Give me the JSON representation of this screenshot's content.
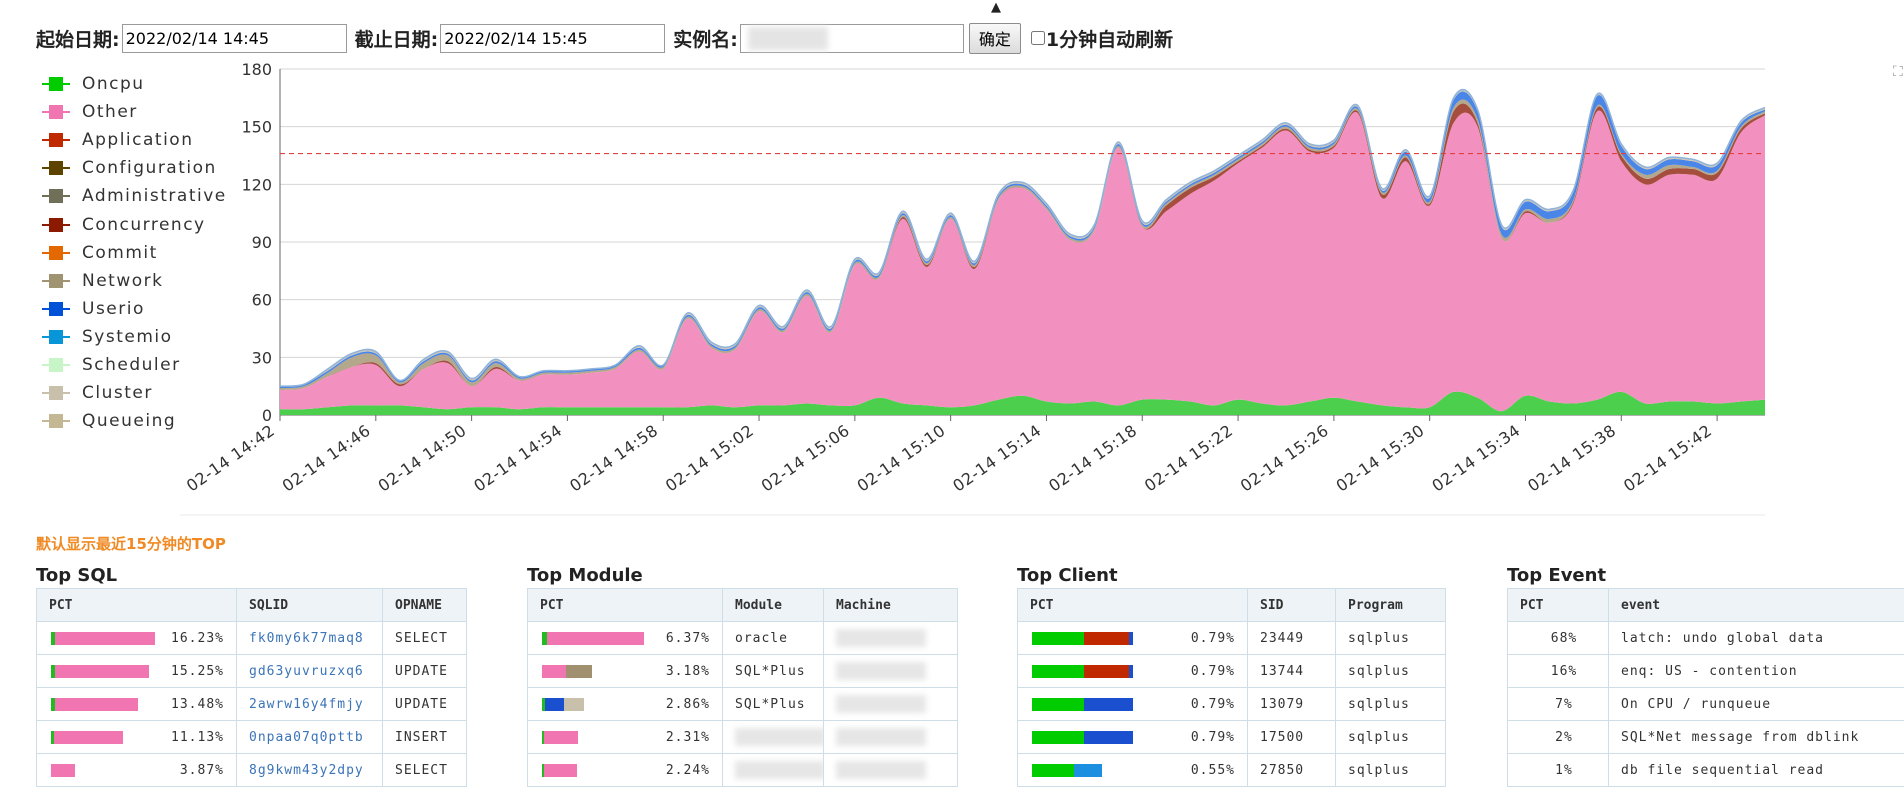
{
  "toolbar": {
    "start_label": "起始日期:",
    "start_value": "2022/02/14 14:45",
    "end_label": "截止日期:",
    "end_value": "2022/02/14 15:45",
    "instance_label": "实例名:",
    "instance_value": "",
    "confirm_label": "确定",
    "auto_refresh_label": "1分钟自动刷新",
    "auto_refresh_checked": false
  },
  "icons": {
    "caret": "▲",
    "corner": "⛶"
  },
  "legend": [
    {
      "label": "Oncpu",
      "color": "#00cc00"
    },
    {
      "label": "Other",
      "color": "#f075b0"
    },
    {
      "label": "Application",
      "color": "#c02800"
    },
    {
      "label": "Configuration",
      "color": "#5c4400"
    },
    {
      "label": "Administrative",
      "color": "#707058"
    },
    {
      "label": "Concurrency",
      "color": "#8b1a00"
    },
    {
      "label": "Commit",
      "color": "#e46800"
    },
    {
      "label": "Network",
      "color": "#9f9371"
    },
    {
      "label": "Userio",
      "color": "#0050d8"
    },
    {
      "label": "Systemio",
      "color": "#0896d8"
    },
    {
      "label": "Scheduler",
      "color": "#c8f5c8"
    },
    {
      "label": "Cluster",
      "color": "#c8c0aa"
    },
    {
      "label": "Queueing",
      "color": "#c4b894"
    }
  ],
  "chart_data": {
    "type": "area",
    "stacked": true,
    "ylim": [
      0,
      180
    ],
    "yticks": [
      0,
      30,
      60,
      90,
      120,
      150,
      180
    ],
    "threshold": 136,
    "grid": true,
    "legend_position": "left",
    "xtick_labels": [
      "02-14 14:42",
      "02-14 14:46",
      "02-14 14:50",
      "02-14 14:54",
      "02-14 14:58",
      "02-14 15:02",
      "02-14 15:06",
      "02-14 15:10",
      "02-14 15:14",
      "02-14 15:18",
      "02-14 15:22",
      "02-14 15:26",
      "02-14 15:30",
      "02-14 15:34",
      "02-14 15:38",
      "02-14 15:42"
    ],
    "x_start_minutes": 0,
    "x_end_minutes": 62,
    "x_tick_step_minutes": 4,
    "x": [
      0,
      1,
      2,
      3,
      4,
      5,
      6,
      7,
      8,
      9,
      10,
      11,
      12,
      13,
      14,
      15,
      16,
      17,
      18,
      19,
      20,
      21,
      22,
      23,
      24,
      25,
      26,
      27,
      28,
      29,
      30,
      31,
      32,
      33,
      34,
      35,
      36,
      37,
      38,
      39,
      40,
      41,
      42,
      43,
      44,
      45,
      46,
      47,
      48,
      49,
      50,
      51,
      52,
      53,
      54,
      55,
      56,
      57,
      58,
      59,
      60,
      61,
      62
    ],
    "series": [
      {
        "name": "Oncpu",
        "color": "#4ccf4c",
        "values": [
          3,
          3,
          4,
          5,
          5,
          5,
          4,
          3,
          4,
          4,
          3,
          4,
          4,
          4,
          4,
          4,
          4,
          4,
          5,
          4,
          5,
          5,
          6,
          5,
          5,
          9,
          6,
          5,
          4,
          5,
          8,
          10,
          7,
          6,
          7,
          5,
          8,
          8,
          7,
          5,
          8,
          6,
          5,
          7,
          9,
          7,
          5,
          4,
          4,
          12,
          9,
          2,
          10,
          7,
          6,
          8,
          12,
          6,
          7,
          7,
          6,
          7,
          8
        ]
      },
      {
        "name": "Other",
        "color": "#f291bf",
        "values": [
          10,
          11,
          16,
          20,
          21,
          10,
          20,
          24,
          11,
          20,
          15,
          17,
          17,
          18,
          20,
          29,
          20,
          46,
          30,
          30,
          49,
          38,
          56,
          38,
          73,
          62,
          96,
          72,
          98,
          71,
          104,
          108,
          100,
          85,
          89,
          134,
          90,
          98,
          108,
          117,
          123,
          133,
          143,
          130,
          130,
          150,
          108,
          128,
          105,
          140,
          141,
          90,
          95,
          93,
          104,
          150,
          120,
          114,
          118,
          118,
          117,
          140,
          148
        ]
      },
      {
        "name": "Application",
        "color": "#a54e3e",
        "values": [
          0,
          0,
          0,
          0,
          1,
          1,
          0,
          1,
          0,
          1,
          0,
          0,
          0,
          0,
          0,
          0,
          0,
          0,
          0,
          0,
          0,
          0,
          0,
          0,
          0,
          0,
          1,
          1,
          0,
          1,
          0,
          0,
          0,
          0,
          0,
          0,
          0,
          3,
          3,
          2,
          1,
          1,
          1,
          1,
          1,
          1,
          2,
          2,
          1,
          6,
          2,
          0,
          1,
          0,
          1,
          2,
          3,
          3,
          3,
          3,
          3,
          2,
          1
        ]
      },
      {
        "name": "Network",
        "color": "#b4a88c",
        "values": [
          1,
          1,
          2,
          5,
          4,
          1,
          3,
          3,
          2,
          2,
          1,
          1,
          1,
          1,
          1,
          1,
          1,
          1,
          1,
          1,
          1,
          1,
          1,
          1,
          1,
          1,
          1,
          1,
          1,
          1,
          1,
          1,
          1,
          1,
          1,
          1,
          1,
          1,
          1,
          1,
          1,
          1,
          1,
          1,
          1,
          1,
          1,
          1,
          1,
          2,
          2,
          2,
          1,
          2,
          1,
          1,
          1,
          2,
          2,
          1,
          1,
          1,
          1
        ]
      },
      {
        "name": "Userio",
        "color": "#4a86e8",
        "values": [
          1,
          1,
          1,
          1,
          1,
          1,
          1,
          1,
          1,
          1,
          1,
          1,
          1,
          1,
          1,
          1,
          1,
          1,
          1,
          1,
          1,
          1,
          1,
          1,
          1,
          1,
          1,
          1,
          1,
          1,
          1,
          1,
          1,
          1,
          1,
          1,
          1,
          1,
          1,
          1,
          1,
          1,
          1,
          1,
          1,
          1,
          1,
          2,
          2,
          4,
          4,
          4,
          4,
          4,
          4,
          5,
          4,
          3,
          3,
          3,
          3,
          2,
          1
        ]
      },
      {
        "name": "Cluster",
        "color": "#cdc7b9",
        "values": [
          0,
          0,
          1,
          1,
          1,
          0,
          1,
          1,
          1,
          1,
          0,
          0,
          0,
          0,
          0,
          1,
          0,
          1,
          1,
          1,
          1,
          1,
          1,
          1,
          1,
          1,
          1,
          1,
          1,
          1,
          1,
          1,
          1,
          1,
          1,
          1,
          1,
          1,
          1,
          1,
          1,
          1,
          1,
          1,
          1,
          1,
          1,
          1,
          1,
          1,
          1,
          1,
          1,
          1,
          1,
          1,
          1,
          1,
          1,
          1,
          1,
          1,
          1
        ]
      }
    ]
  },
  "note": "默认显示最近15分钟的TOP",
  "top_sql": {
    "title": "Top SQL",
    "headers": [
      "PCT",
      "SQLID",
      "OPNAME"
    ],
    "rows": [
      {
        "pct": "16.23%",
        "id": "fk0my6k77maq8",
        "op": "SELECT",
        "bar": [
          {
            "color": "#22bb22",
            "w": 4
          },
          {
            "color": "#f075b0",
            "w": 100
          }
        ]
      },
      {
        "pct": "15.25%",
        "id": "gd63yuvruzxq6",
        "op": "UPDATE",
        "bar": [
          {
            "color": "#22bb22",
            "w": 4
          },
          {
            "color": "#f075b0",
            "w": 94
          }
        ]
      },
      {
        "pct": "13.48%",
        "id": "2awrw16y4fmjy",
        "op": "UPDATE",
        "bar": [
          {
            "color": "#22bb22",
            "w": 4
          },
          {
            "color": "#f075b0",
            "w": 83
          }
        ]
      },
      {
        "pct": "11.13%",
        "id": "0npaa07q0pttb",
        "op": "INSERT",
        "bar": [
          {
            "color": "#22bb22",
            "w": 3
          },
          {
            "color": "#f075b0",
            "w": 69
          }
        ]
      },
      {
        "pct": "3.87%",
        "id": "8g9kwm43y2dpy",
        "op": "SELECT",
        "bar": [
          {
            "color": "#f075b0",
            "w": 24
          }
        ]
      }
    ]
  },
  "top_module": {
    "title": "Top Module",
    "headers": [
      "PCT",
      "Module",
      "Machine"
    ],
    "rows": [
      {
        "pct": "6.37%",
        "module": "oracle",
        "bar": [
          {
            "color": "#22bb22",
            "w": 5
          },
          {
            "color": "#f075b0",
            "w": 97
          }
        ]
      },
      {
        "pct": "3.18%",
        "module": "SQL*Plus",
        "bar": [
          {
            "color": "#f075b0",
            "w": 24
          },
          {
            "color": "#a09070",
            "w": 26
          }
        ]
      },
      {
        "pct": "2.86%",
        "module": "SQL*Plus",
        "bar": [
          {
            "color": "#22bb22",
            "w": 3
          },
          {
            "color": "#1a4fd0",
            "w": 19
          },
          {
            "color": "#c8c0aa",
            "w": 20
          }
        ]
      },
      {
        "pct": "2.31%",
        "module": "",
        "bar": [
          {
            "color": "#22bb22",
            "w": 2
          },
          {
            "color": "#f075b0",
            "w": 34
          }
        ]
      },
      {
        "pct": "2.24%",
        "module": "",
        "bar": [
          {
            "color": "#22bb22",
            "w": 2
          },
          {
            "color": "#f075b0",
            "w": 33
          }
        ]
      }
    ]
  },
  "top_client": {
    "title": "Top Client",
    "headers": [
      "PCT",
      "SID",
      "Program"
    ],
    "rows": [
      {
        "pct": "0.79%",
        "sid": "23449",
        "program": "sqlplus",
        "bar": [
          {
            "color": "#00cc00",
            "w": 52
          },
          {
            "color": "#c02800",
            "w": 45
          },
          {
            "color": "#1a4fd0",
            "w": 4
          }
        ]
      },
      {
        "pct": "0.79%",
        "sid": "13744",
        "program": "sqlplus",
        "bar": [
          {
            "color": "#00cc00",
            "w": 52
          },
          {
            "color": "#c02800",
            "w": 45
          },
          {
            "color": "#1a4fd0",
            "w": 4
          }
        ]
      },
      {
        "pct": "0.79%",
        "sid": "13079",
        "program": "sqlplus",
        "bar": [
          {
            "color": "#00cc00",
            "w": 52
          },
          {
            "color": "#1a4fd0",
            "w": 49
          }
        ]
      },
      {
        "pct": "0.79%",
        "sid": "17500",
        "program": "sqlplus",
        "bar": [
          {
            "color": "#00cc00",
            "w": 52
          },
          {
            "color": "#1a4fd0",
            "w": 49
          }
        ]
      },
      {
        "pct": "0.55%",
        "sid": "27850",
        "program": "sqlplus",
        "bar": [
          {
            "color": "#00cc00",
            "w": 42
          },
          {
            "color": "#1d8fe0",
            "w": 28
          }
        ]
      }
    ]
  },
  "top_event": {
    "title": "Top Event",
    "headers": [
      "PCT",
      "event"
    ],
    "rows": [
      {
        "pct": "68%",
        "event": "latch: undo global data"
      },
      {
        "pct": "16%",
        "event": "enq: US - contention"
      },
      {
        "pct": "7%",
        "event": "On CPU / runqueue"
      },
      {
        "pct": "2%",
        "event": "SQL*Net message from dblink"
      },
      {
        "pct": "1%",
        "event": "db file sequential read"
      }
    ]
  }
}
